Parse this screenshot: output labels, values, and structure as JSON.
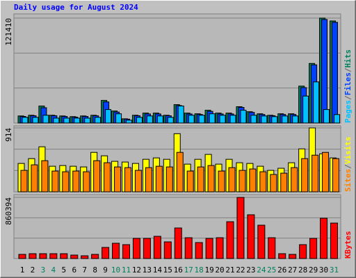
{
  "chart_data": [
    {
      "type": "bar",
      "title": "Daily usage for August 2024",
      "legend_separator": "/",
      "ylim": [
        0,
        121410
      ],
      "yticks": [
        121410
      ],
      "series": [
        {
          "name": "Hits",
          "color": "#00805c",
          "values": [
            8200,
            9000,
            19700,
            9000,
            8200,
            7400,
            8200,
            9000,
            26200,
            13900,
            4900,
            9000,
            11500,
            11500,
            9000,
            21300,
            11500,
            10700,
            14800,
            11500,
            11500,
            18900,
            13100,
            10700,
            9000,
            10700,
            10700,
            42700,
            68900,
            121410,
            118100
          ]
        },
        {
          "name": "Files",
          "color": "#0040ff",
          "values": [
            7600,
            8400,
            17700,
            8400,
            7600,
            6800,
            7600,
            8400,
            24400,
            12700,
            4500,
            8400,
            10500,
            10500,
            8400,
            20200,
            10500,
            9900,
            13500,
            10500,
            10500,
            18100,
            12300,
            9900,
            8400,
            9900,
            9900,
            41000,
            67300,
            119800,
            116500
          ]
        },
        {
          "name": "Pages",
          "color": "#00c0ff",
          "values": [
            6600,
            6600,
            9000,
            5700,
            5700,
            5700,
            5700,
            6600,
            15600,
            10700,
            3300,
            6600,
            8200,
            8200,
            6600,
            19700,
            9000,
            9000,
            10700,
            9000,
            9000,
            14800,
            9000,
            8200,
            7400,
            8200,
            8200,
            31200,
            47600,
            15600,
            9800
          ]
        }
      ]
    },
    {
      "type": "bar",
      "ylim": [
        0,
        914
      ],
      "yticks": [
        914
      ],
      "series": [
        {
          "name": "Visits",
          "color": "#ffff00",
          "values": [
            406,
            475,
            644,
            366,
            376,
            366,
            356,
            564,
            515,
            436,
            426,
            406,
            465,
            485,
            465,
            831,
            396,
            465,
            535,
            396,
            465,
            416,
            406,
            366,
            307,
            337,
            416,
            614,
            914,
            544,
            485
          ]
        },
        {
          "name": "Sites",
          "color": "#ff8000",
          "values": [
            307,
            386,
            445,
            297,
            287,
            297,
            287,
            445,
            416,
            356,
            346,
            307,
            346,
            366,
            356,
            564,
            297,
            356,
            376,
            297,
            346,
            307,
            327,
            287,
            248,
            267,
            346,
            475,
            524,
            564,
            475
          ]
        }
      ]
    },
    {
      "type": "bar",
      "ylim": [
        0,
        860394
      ],
      "yticks": [
        860394
      ],
      "categories": [
        "1",
        "2",
        "3",
        "4",
        "5",
        "6",
        "7",
        "8",
        "9",
        "10",
        "11",
        "12",
        "13",
        "14",
        "15",
        "16",
        "17",
        "18",
        "19",
        "20",
        "21",
        "22",
        "23",
        "24",
        "25",
        "26",
        "27",
        "28",
        "29",
        "30",
        "31"
      ],
      "category_colors": [
        "#000",
        "#000",
        "#00805c",
        "#00805c",
        "#000",
        "#000",
        "#000",
        "#000",
        "#000",
        "#00805c",
        "#00805c",
        "#000",
        "#000",
        "#000",
        "#000",
        "#000",
        "#00805c",
        "#00805c",
        "#000",
        "#000",
        "#000",
        "#000",
        "#000",
        "#00805c",
        "#00805c",
        "#000",
        "#000",
        "#000",
        "#000",
        "#000",
        "#00805c"
      ],
      "series": [
        {
          "name": "KBytes",
          "color": "#ff0000",
          "values": [
            58700,
            68400,
            68400,
            68400,
            68400,
            48900,
            39100,
            58700,
            156400,
            215100,
            195500,
            283500,
            283500,
            312900,
            234600,
            430200,
            293300,
            224900,
            283500,
            293300,
            518200,
            860394,
            615900,
            469300,
            293300,
            68400,
            58700,
            195500,
            283500,
            567100,
            498700
          ]
        }
      ]
    }
  ]
}
